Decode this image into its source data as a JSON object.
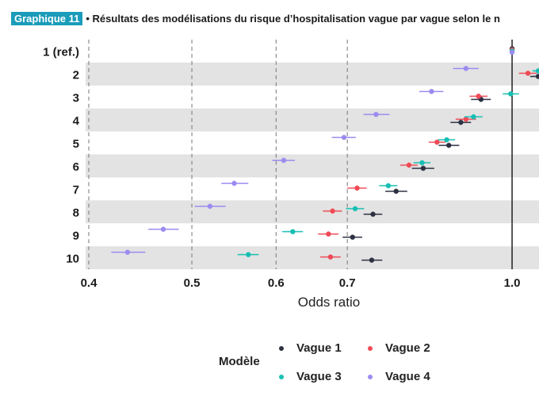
{
  "header": {
    "badge": "Graphique 11",
    "title": "• Résultats des modélisations du risque d’hospitalisation vague par vague selon le n"
  },
  "legend": {
    "title": "Modèle",
    "items": [
      {
        "label": "Vague 1",
        "color": "#2d3142"
      },
      {
        "label": "Vague 2",
        "color": "#ef4a55"
      },
      {
        "label": "Vague 3",
        "color": "#17bfb3"
      },
      {
        "label": "Vague 4",
        "color": "#9a8cf0"
      }
    ]
  },
  "chart_data": {
    "type": "scatter",
    "subtype": "forest-plot",
    "xlabel": "Odds ratio",
    "x_scale": "log",
    "xlim": [
      0.4,
      1.06
    ],
    "xticks": [
      0.4,
      0.5,
      0.6,
      0.7,
      1.0
    ],
    "xtick_labels": [
      "0.4",
      "0.5",
      "0.6",
      "0.7",
      "1.0"
    ],
    "reference_line": 1.0,
    "categories": [
      "1 (ref.)",
      "2",
      "3",
      "4",
      "5",
      "6",
      "7",
      "8",
      "9",
      "10"
    ],
    "series": [
      {
        "name": "Vague 1",
        "color": "#2d3142",
        "values": [
          1.0,
          1.07,
          0.935,
          0.895,
          0.872,
          0.825,
          0.778,
          0.74,
          0.708,
          0.738
        ],
        "ci_low": [
          1.0,
          1.04,
          0.915,
          0.875,
          0.853,
          0.805,
          0.76,
          0.725,
          0.693,
          0.722
        ],
        "ci_high": [
          1.0,
          1.1,
          0.955,
          0.915,
          0.892,
          0.845,
          0.797,
          0.755,
          0.723,
          0.755
        ]
      },
      {
        "name": "Vague 2",
        "color": "#ef4a55",
        "values": [
          1.0,
          1.035,
          0.93,
          0.905,
          0.85,
          0.8,
          0.715,
          0.678,
          0.672,
          0.675
        ],
        "ci_low": [
          1.0,
          1.015,
          0.912,
          0.885,
          0.835,
          0.785,
          0.7,
          0.664,
          0.657,
          0.66
        ],
        "ci_high": [
          1.0,
          1.055,
          0.948,
          0.925,
          0.866,
          0.815,
          0.73,
          0.692,
          0.687,
          0.69
        ],
        "colorAll": true
      },
      {
        "name": "Vague 3",
        "color": "#17bfb3",
        "values": [
          1.0,
          1.06,
          0.997,
          0.92,
          0.868,
          0.823,
          0.765,
          0.712,
          0.622,
          0.565
        ],
        "ci_low": [
          1.0,
          1.045,
          0.98,
          0.902,
          0.852,
          0.808,
          0.75,
          0.698,
          0.608,
          0.552
        ],
        "ci_high": [
          1.0,
          1.075,
          1.015,
          0.938,
          0.884,
          0.838,
          0.78,
          0.726,
          0.636,
          0.578
        ]
      },
      {
        "name": "Vague 4",
        "color": "#9a8cf0",
        "values": [
          1.0,
          0.905,
          0.84,
          0.745,
          0.695,
          0.61,
          0.548,
          0.52,
          0.47,
          0.435
        ],
        "ci_low": [
          1.0,
          0.88,
          0.818,
          0.725,
          0.677,
          0.595,
          0.533,
          0.503,
          0.455,
          0.42
        ],
        "ci_high": [
          1.0,
          0.93,
          0.862,
          0.767,
          0.713,
          0.625,
          0.565,
          0.538,
          0.486,
          0.452
        ]
      }
    ]
  }
}
